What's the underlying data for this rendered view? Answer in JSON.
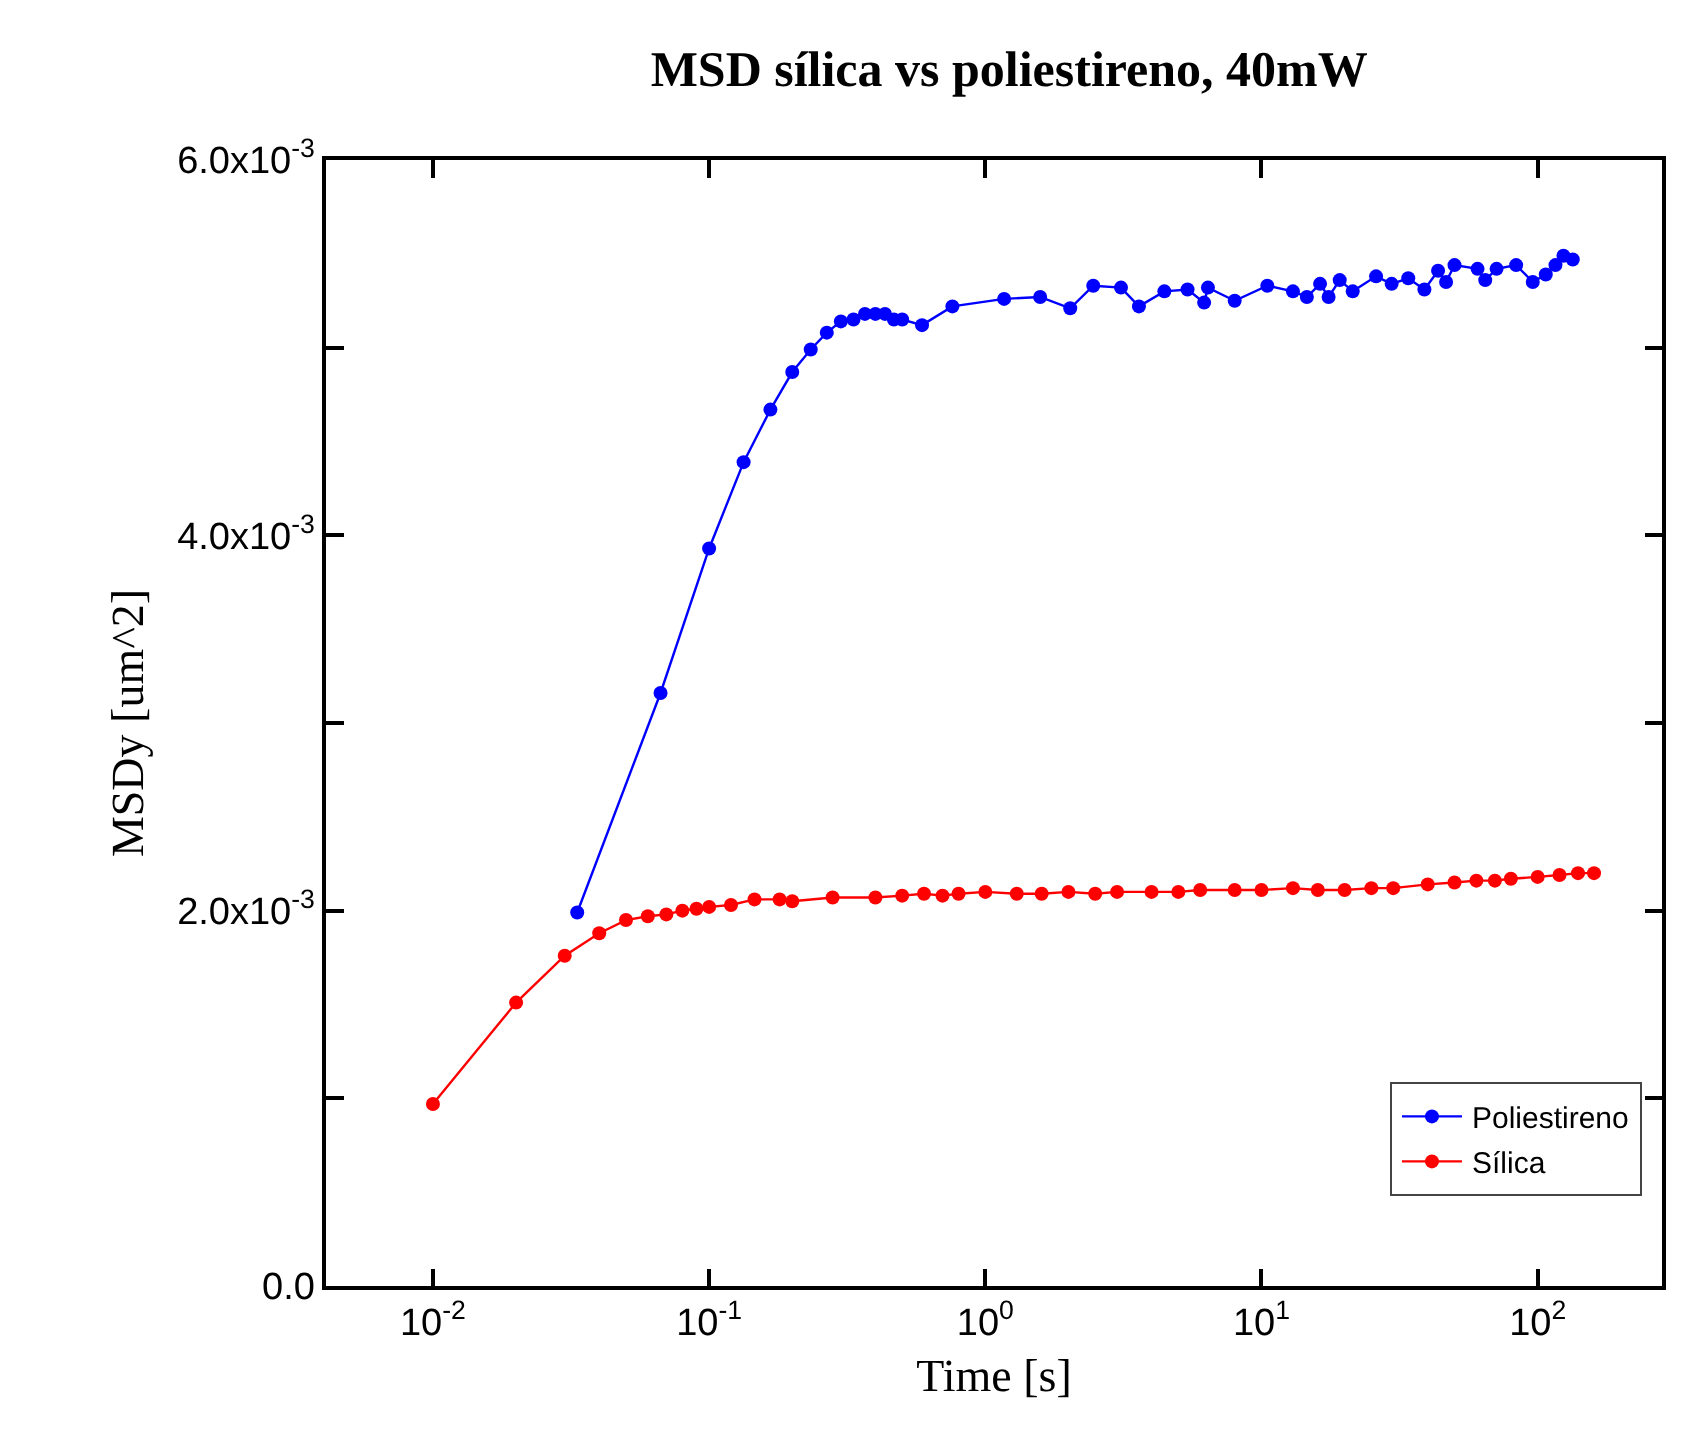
{
  "chart_data": {
    "type": "line",
    "title": "MSD sílica vs poliestireno, 40mW",
    "xlabel": "Time [s]",
    "ylabel": "MSDy [um^2]",
    "log": "x",
    "xlim": [
      0.0041,
      282
    ],
    "ylim": [
      0,
      0.006
    ],
    "xticks": [
      {
        "value": 0.01,
        "label": "10$^{-2}$"
      },
      {
        "value": 0.1,
        "label": "10$^{-1}$"
      },
      {
        "value": 1,
        "label": "10$^{0}$"
      },
      {
        "value": 10,
        "label": "10$^{1}$"
      },
      {
        "value": 100,
        "label": "10$^{2}$"
      }
    ],
    "yticks": [
      {
        "value": 0,
        "label": "0.0"
      },
      {
        "value": 0.001,
        "label": null
      },
      {
        "value": 0.002,
        "label": "2.0x10$^{-3}$"
      },
      {
        "value": 0.003,
        "label": null
      },
      {
        "value": 0.004,
        "label": "4.0x10$^{-3}$"
      },
      {
        "value": 0.005,
        "label": null
      },
      {
        "value": 0.006,
        "label": "6.0x10$^{-3}$"
      }
    ],
    "legend": "bottom right",
    "marker": "circle",
    "line_style": "solid",
    "series": [
      {
        "name": "Poliestireno",
        "color": "#0000ff",
        "x": [
          0.0333,
          0.0667,
          0.1,
          0.1333,
          0.1667,
          0.2,
          0.2333,
          0.2667,
          0.3,
          0.3333,
          0.3667,
          0.4,
          0.4333,
          0.4667,
          0.5,
          0.59,
          0.76,
          1.17,
          1.58,
          2.03,
          2.46,
          3.1,
          3.6,
          4.45,
          5.4,
          6.2,
          6.4,
          8,
          10.5,
          13,
          14.6,
          16.3,
          17.5,
          19.2,
          21.4,
          26,
          29.6,
          34,
          38.9,
          43.6,
          46.6,
          50,
          60.6,
          64.6,
          71,
          83.6,
          96,
          107,
          116,
          124,
          134
        ],
        "values": [
          0.00199,
          0.00316,
          0.00393,
          0.00439,
          0.00467,
          0.00487,
          0.00499,
          0.00508,
          0.00514,
          0.00515,
          0.00518,
          0.00518,
          0.00518,
          0.00515,
          0.00515,
          0.00512,
          0.00522,
          0.00526,
          0.00527,
          0.00521,
          0.00533,
          0.00532,
          0.00522,
          0.0053,
          0.00531,
          0.00524,
          0.00532,
          0.00525,
          0.00533,
          0.0053,
          0.00527,
          0.00534,
          0.00527,
          0.00536,
          0.0053,
          0.00538,
          0.00534,
          0.00537,
          0.00531,
          0.00541,
          0.00535,
          0.00544,
          0.00542,
          0.00536,
          0.00542,
          0.00544,
          0.00535,
          0.00539,
          0.00544,
          0.00549,
          0.00547
        ]
      },
      {
        "name": "Sílica",
        "color": "#ff0000",
        "x": [
          0.01,
          0.02,
          0.03,
          0.04,
          0.05,
          0.06,
          0.07,
          0.08,
          0.09,
          0.1,
          0.12,
          0.146,
          0.18,
          0.2,
          0.28,
          0.4,
          0.5,
          0.6,
          0.7,
          0.8,
          1,
          1.3,
          1.6,
          2,
          2.5,
          3,
          4,
          5,
          6,
          8,
          10,
          13,
          16,
          20,
          25,
          30,
          40,
          50,
          60,
          70,
          80,
          100,
          120,
          140,
          160
        ],
        "values": [
          0.00097,
          0.00151,
          0.00176,
          0.00188,
          0.00195,
          0.00197,
          0.00198,
          0.002,
          0.00201,
          0.00202,
          0.00203,
          0.00206,
          0.00206,
          0.00205,
          0.00207,
          0.00207,
          0.00208,
          0.00209,
          0.00208,
          0.00209,
          0.0021,
          0.00209,
          0.00209,
          0.0021,
          0.00209,
          0.0021,
          0.0021,
          0.0021,
          0.00211,
          0.00211,
          0.00211,
          0.00212,
          0.00211,
          0.00211,
          0.00212,
          0.00212,
          0.00214,
          0.00215,
          0.00216,
          0.00216,
          0.00217,
          0.00218,
          0.00219,
          0.0022,
          0.0022
        ]
      }
    ]
  }
}
